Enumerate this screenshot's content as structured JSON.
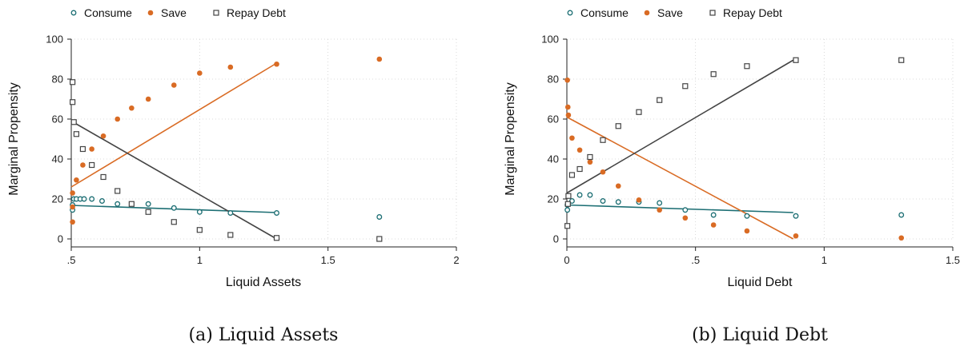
{
  "colors": {
    "consume": "#1d6f74",
    "save": "#d96b24",
    "repay": "#444444",
    "grid": "#cfcfcf"
  },
  "chart_data": [
    {
      "type": "scatter",
      "caption": "(a) Liquid Assets",
      "xlabel": "Liquid Assets",
      "ylabel": "Marginal Propensity",
      "xlim": [
        0.5,
        2
      ],
      "ylim": [
        0,
        100
      ],
      "xticks": [
        0.5,
        1,
        1.5,
        2
      ],
      "xtick_labels": [
        ".5",
        "1",
        "1.5",
        "2"
      ],
      "yticks": [
        0,
        20,
        40,
        60,
        80,
        100
      ],
      "grid": true,
      "legend_position": "top",
      "series": [
        {
          "key": "consume",
          "name": "Consume",
          "marker": "hollow-circle",
          "x": [
            0.505,
            0.505,
            0.51,
            0.52,
            0.535,
            0.55,
            0.58,
            0.62,
            0.68,
            0.8,
            0.9,
            1.0,
            1.12,
            1.3,
            1.7
          ],
          "y": [
            14.5,
            17,
            20,
            20,
            20,
            20,
            20,
            19,
            17.5,
            17.5,
            15.5,
            13.5,
            13,
            13,
            11
          ],
          "fit": [
            [
              0.5,
              16.8
            ],
            [
              1.3,
              13.2
            ]
          ]
        },
        {
          "key": "save",
          "name": "Save",
          "marker": "filled-circle",
          "x": [
            0.505,
            0.505,
            0.505,
            0.52,
            0.545,
            0.58,
            0.625,
            0.68,
            0.735,
            0.8,
            0.9,
            1.0,
            1.12,
            1.3,
            1.7
          ],
          "y": [
            8.5,
            16,
            23,
            29.5,
            37,
            45,
            51.5,
            60,
            65.5,
            70,
            77,
            83,
            86,
            87.5,
            90
          ],
          "fit": [
            [
              0.5,
              26
            ],
            [
              1.3,
              88
            ]
          ]
        },
        {
          "key": "repay",
          "name": "Repay Debt",
          "marker": "hollow-square",
          "x": [
            0.505,
            0.505,
            0.51,
            0.52,
            0.545,
            0.58,
            0.625,
            0.68,
            0.735,
            0.8,
            0.9,
            1.0,
            1.12,
            1.3,
            1.7
          ],
          "y": [
            78.5,
            68.5,
            58.5,
            52.5,
            45,
            37,
            31,
            24,
            17.5,
            13.5,
            8.5,
            4.5,
            2,
            0.5,
            0
          ],
          "fit": [
            [
              0.5,
              59
            ],
            [
              1.3,
              0
            ]
          ]
        }
      ]
    },
    {
      "type": "scatter",
      "caption": "(b) Liquid Debt",
      "xlabel": "Liquid Debt",
      "ylabel": "Marginal Propensity",
      "xlim": [
        0,
        1.5
      ],
      "ylim": [
        0,
        100
      ],
      "xticks": [
        0,
        0.5,
        1,
        1.5
      ],
      "xtick_labels": [
        "0",
        ".5",
        "1",
        "1.5"
      ],
      "yticks": [
        0,
        20,
        40,
        60,
        80,
        100
      ],
      "grid": true,
      "legend_position": "top",
      "series": [
        {
          "key": "consume",
          "name": "Consume",
          "marker": "hollow-circle",
          "x": [
            0.002,
            0.002,
            0.004,
            0.02,
            0.05,
            0.09,
            0.14,
            0.2,
            0.28,
            0.36,
            0.46,
            0.57,
            0.7,
            0.89,
            1.3
          ],
          "y": [
            14.5,
            17,
            17.5,
            19,
            22,
            22,
            19,
            18.5,
            18.5,
            18,
            14.5,
            12,
            11.5,
            11.5,
            12
          ],
          "fit": [
            [
              0,
              17
            ],
            [
              0.88,
              13.2
            ]
          ]
        },
        {
          "key": "save",
          "name": "Save",
          "marker": "filled-circle",
          "x": [
            0.002,
            0.004,
            0.006,
            0.02,
            0.05,
            0.09,
            0.14,
            0.2,
            0.28,
            0.36,
            0.46,
            0.57,
            0.7,
            0.89,
            1.3
          ],
          "y": [
            79.5,
            66,
            62,
            50.5,
            44.5,
            38.5,
            33.5,
            26.5,
            19.5,
            14.5,
            10.5,
            7,
            4,
            1.5,
            0.5
          ],
          "fit": [
            [
              0,
              61
            ],
            [
              0.88,
              0
            ]
          ]
        },
        {
          "key": "repay",
          "name": "Repay Debt",
          "marker": "hollow-square",
          "x": [
            0.002,
            0.004,
            0.006,
            0.02,
            0.05,
            0.09,
            0.14,
            0.2,
            0.28,
            0.36,
            0.46,
            0.57,
            0.7,
            0.89,
            1.3
          ],
          "y": [
            6.5,
            17.5,
            21.5,
            32,
            35,
            41,
            49.5,
            56.5,
            63.5,
            69.5,
            76.5,
            82.5,
            86.5,
            89.5,
            89.5
          ],
          "fit": [
            [
              0,
              23
            ],
            [
              0.88,
              89.5
            ]
          ]
        }
      ]
    }
  ]
}
